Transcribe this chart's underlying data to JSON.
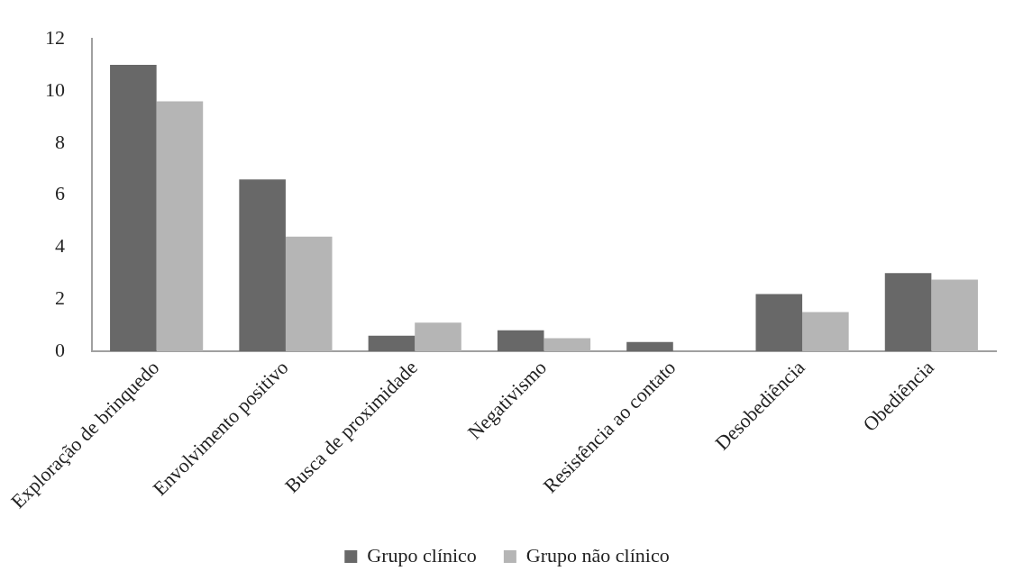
{
  "chart_data": {
    "type": "bar",
    "categories": [
      "Exploração de brinquedo",
      "Envolvimento positivo",
      "Busca de proximidade",
      "Negativismo",
      "Resistência ao contato",
      "Desobediência",
      "Obediência"
    ],
    "series": [
      {
        "name": "Grupo clínico",
        "color": "#686868",
        "values": [
          11.0,
          6.6,
          0.6,
          0.8,
          0.35,
          2.2,
          3.0
        ]
      },
      {
        "name": "Grupo não clínico",
        "color": "#b5b5b5",
        "values": [
          9.6,
          4.4,
          1.1,
          0.5,
          0,
          1.5,
          2.75
        ]
      }
    ],
    "ylim": [
      0,
      12
    ],
    "yticks": [
      0,
      2,
      4,
      6,
      8,
      10,
      12
    ],
    "grid": false,
    "legend": "bottom"
  }
}
